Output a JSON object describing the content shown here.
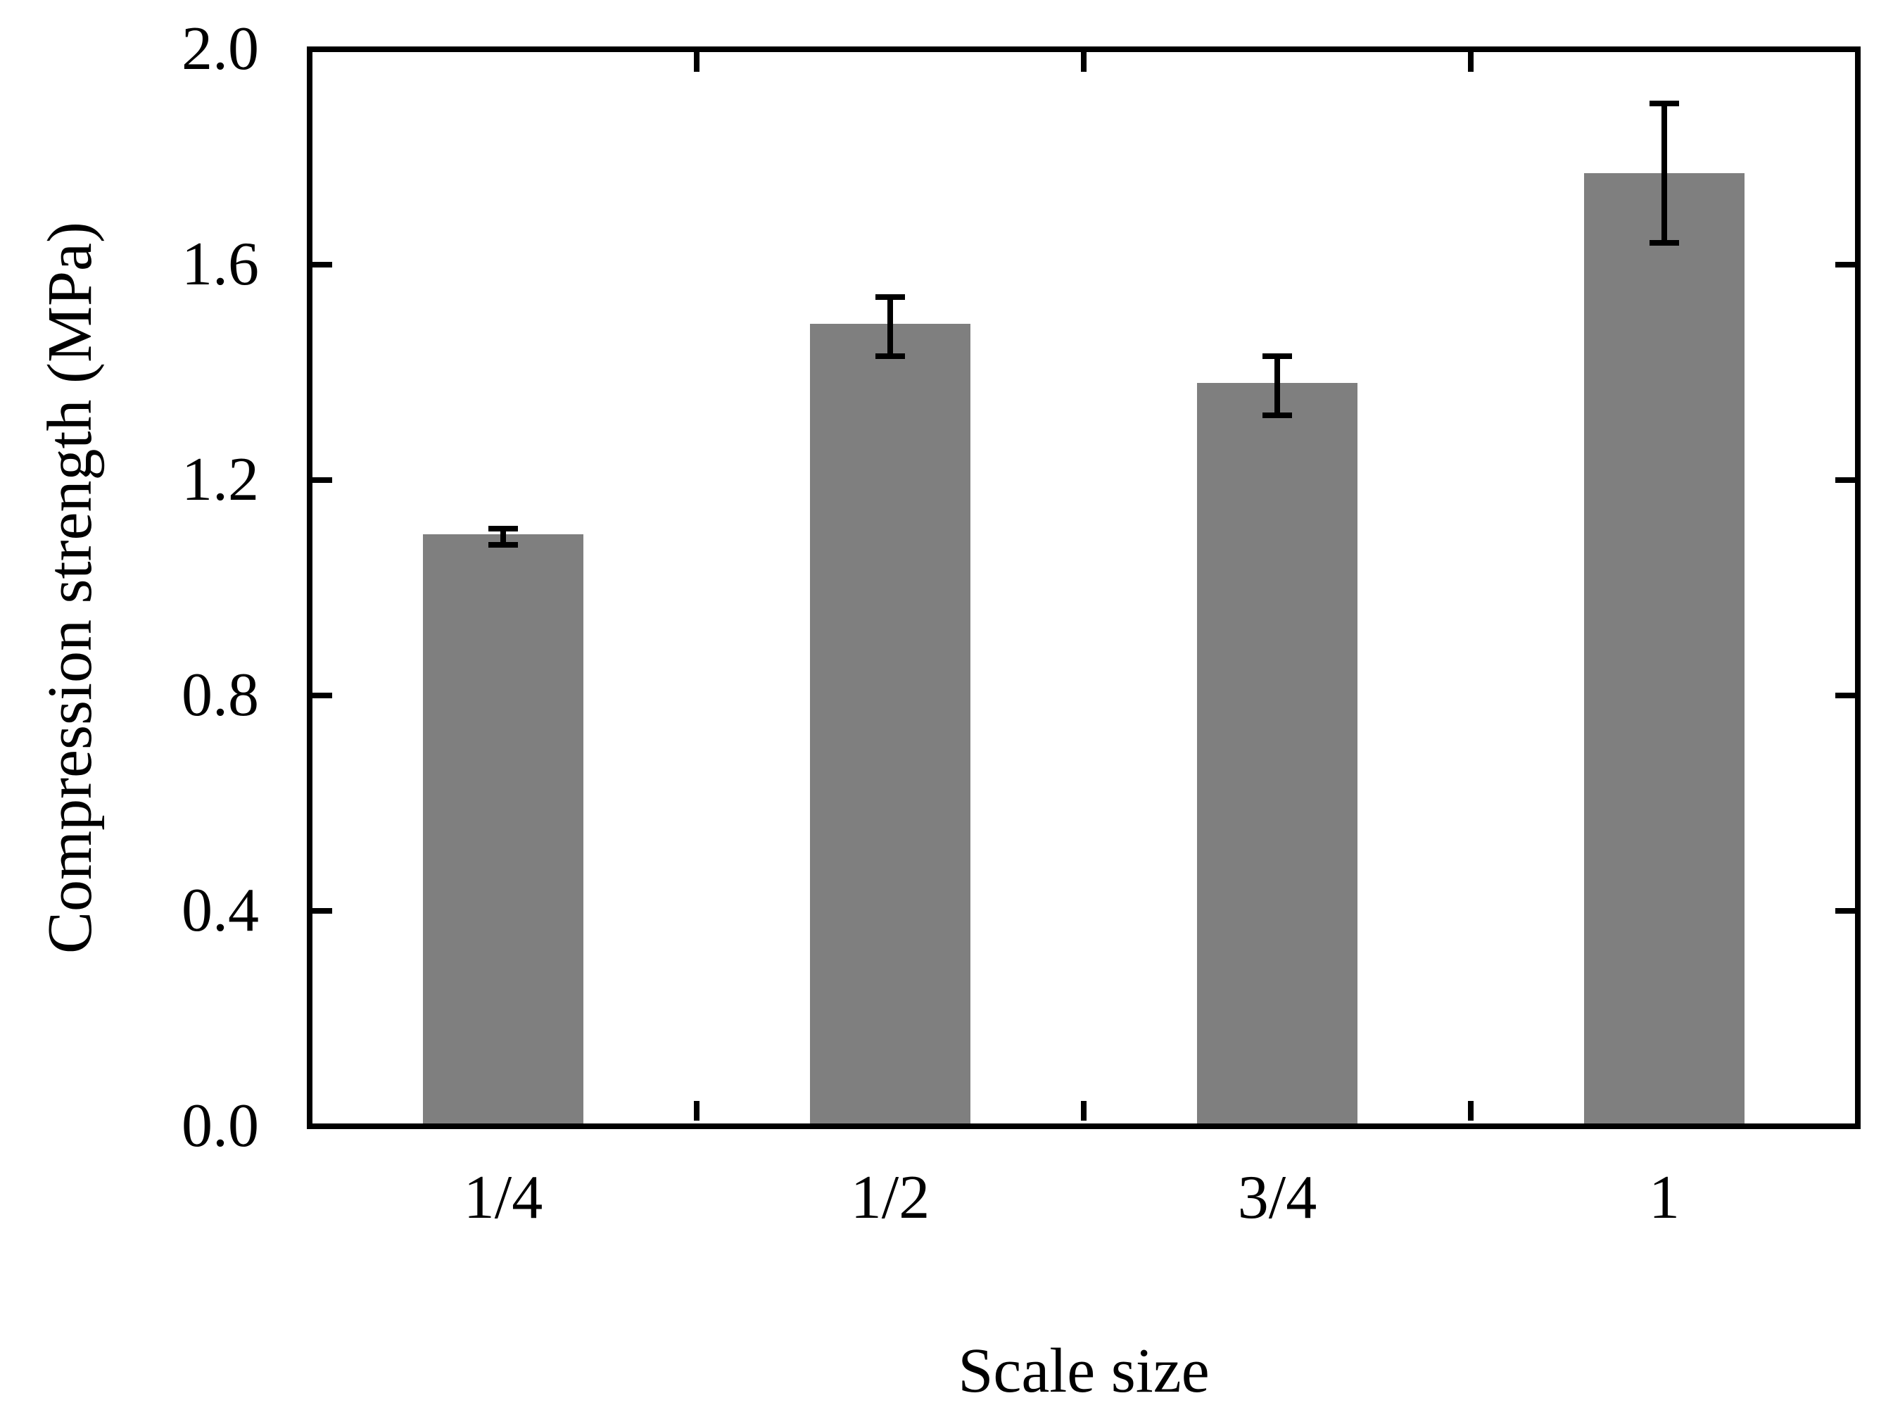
{
  "figure": {
    "background": "#ffffff",
    "bar_color": "#7f7f7f",
    "line_color": "#000000"
  },
  "chart_data": {
    "type": "bar",
    "title": "",
    "xlabel": "Scale size",
    "ylabel": "Compression strength (MPa)",
    "categories": [
      "1/4",
      "1/2",
      "3/4",
      "1"
    ],
    "values": [
      1.1,
      1.49,
      1.38,
      1.77
    ],
    "error_top": [
      1.11,
      1.54,
      1.43,
      1.9
    ],
    "error_bottom": [
      1.08,
      1.43,
      1.32,
      1.64
    ],
    "ylim": [
      0.0,
      2.0
    ],
    "ytick_step": 0.4,
    "yticks": [
      "0.0",
      "0.4",
      "0.8",
      "1.2",
      "1.6",
      "2.0"
    ],
    "grid": false,
    "legend_position": "none"
  }
}
